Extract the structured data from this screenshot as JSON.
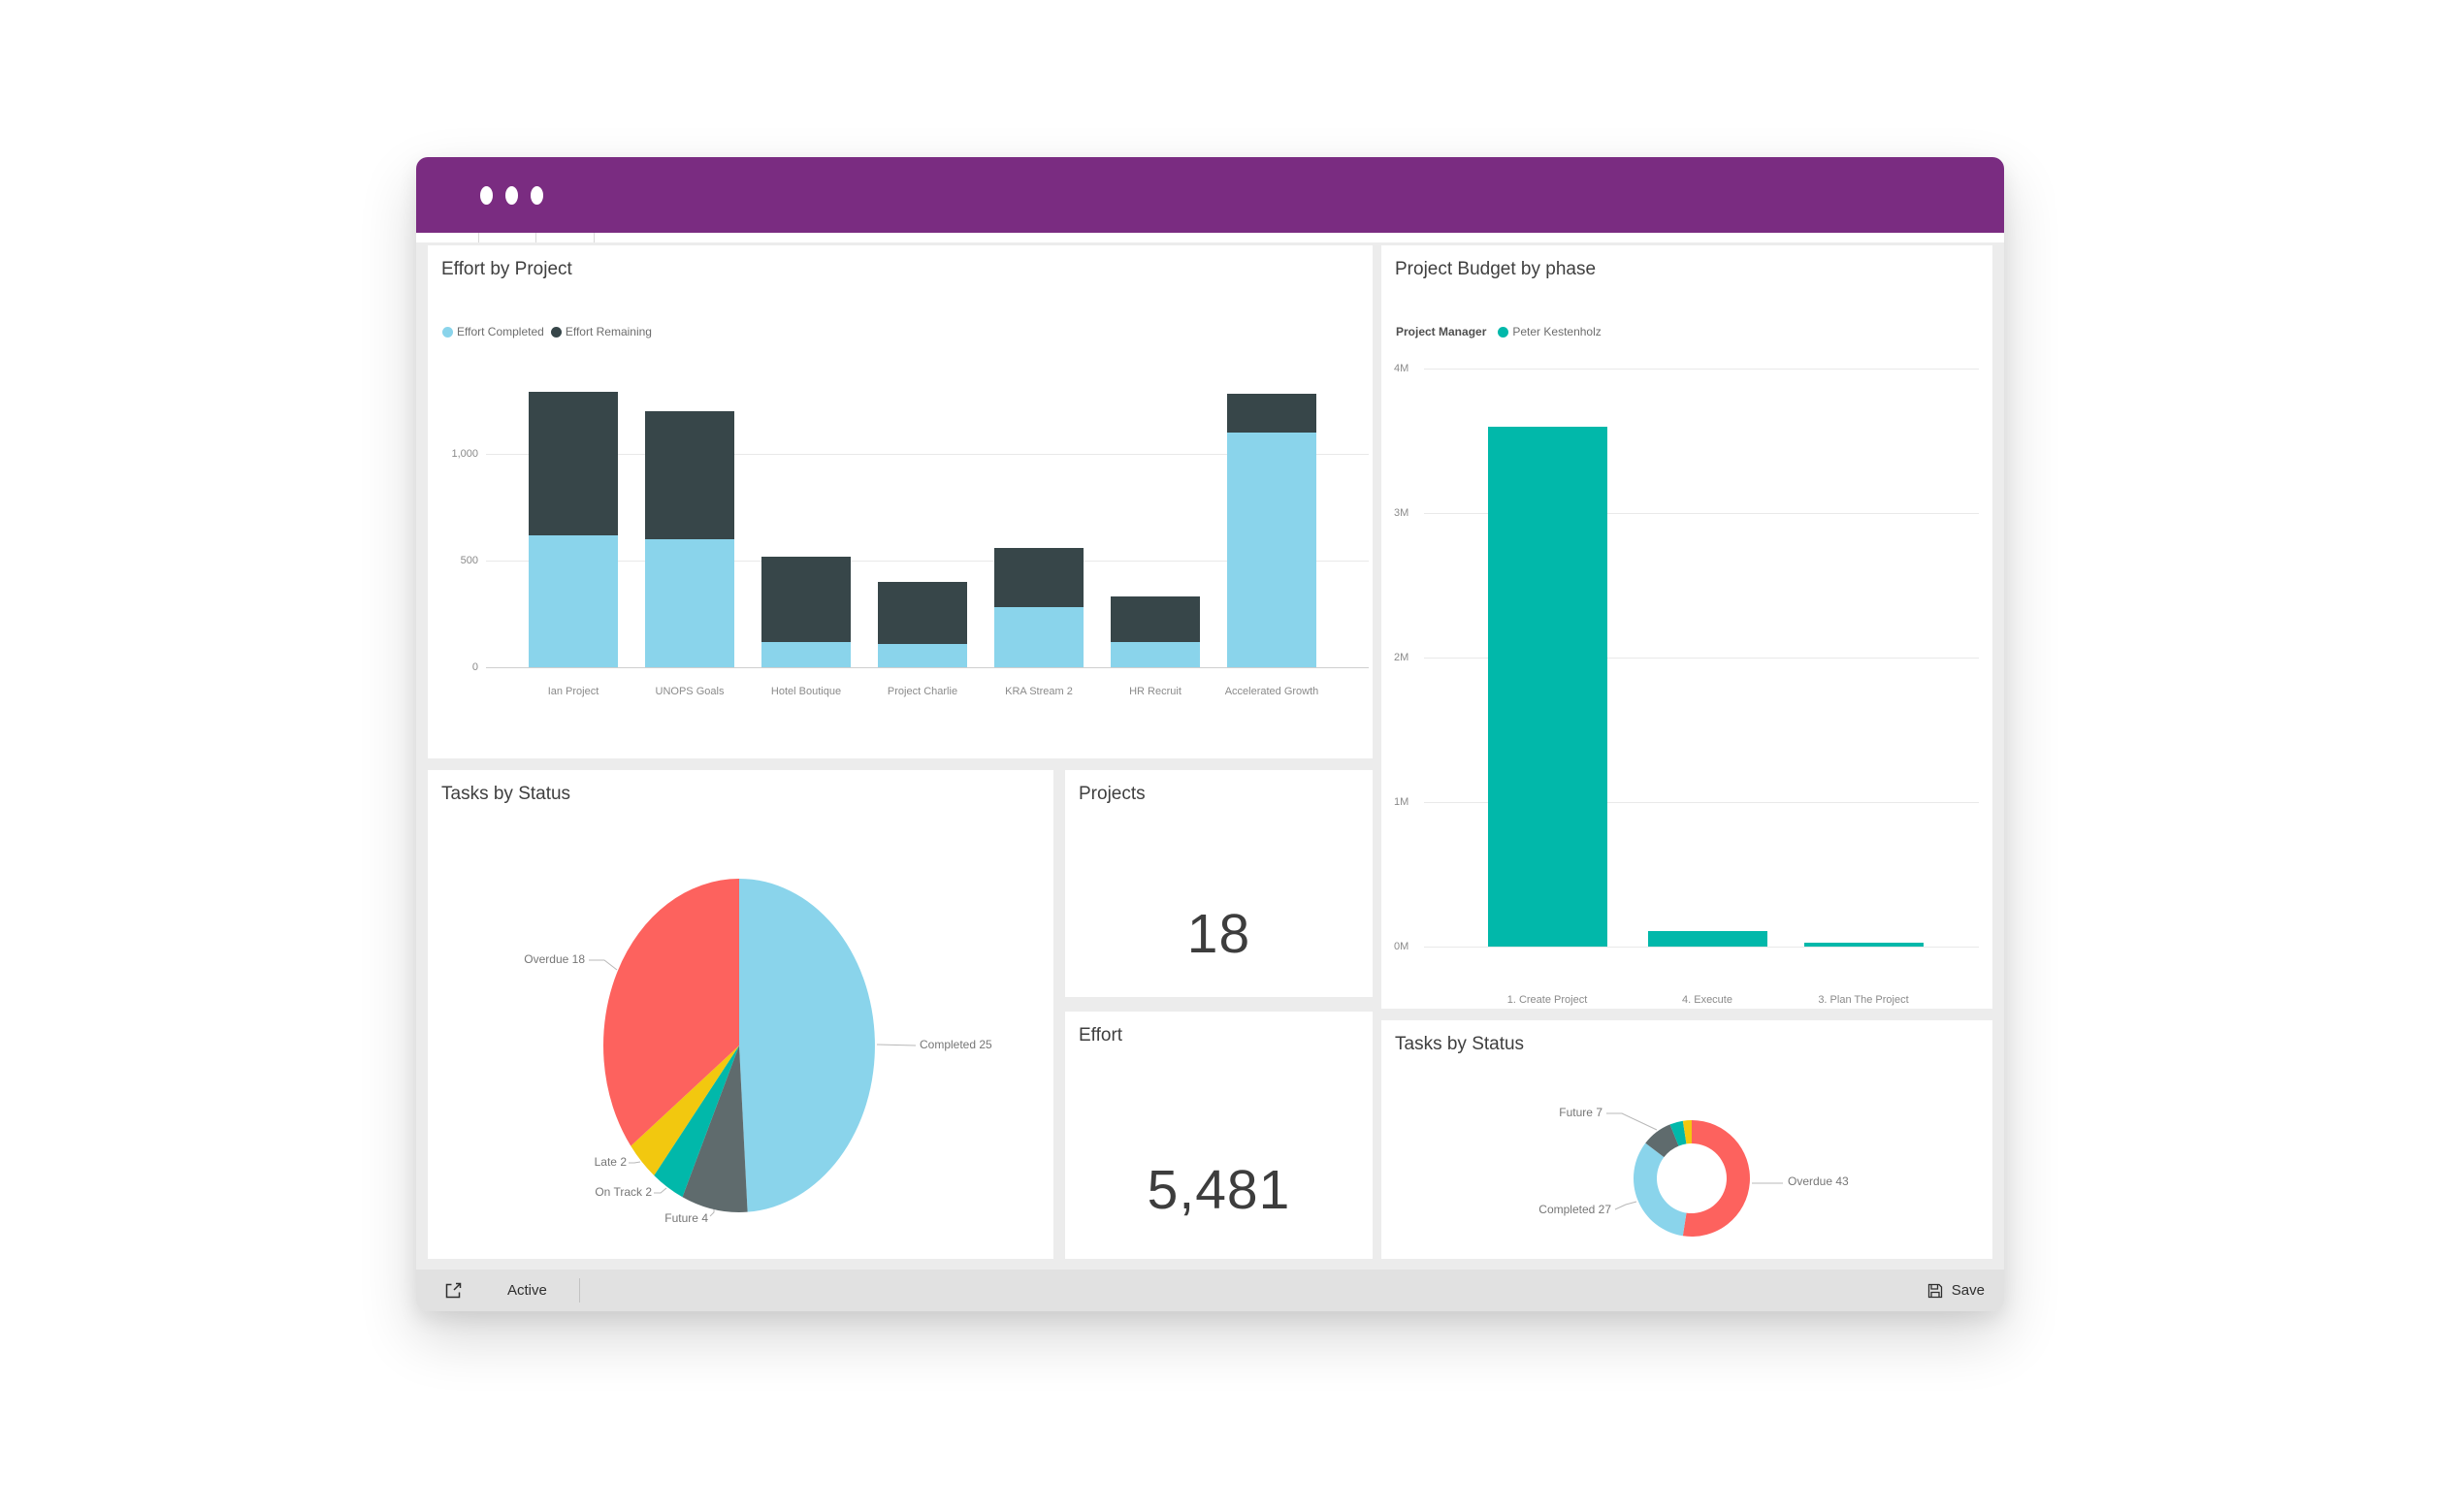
{
  "titlebar": {
    "color": "#7A2C81"
  },
  "footer": {
    "status": "Active",
    "save": "Save"
  },
  "colors": {
    "accent_purple": "#7A2C81",
    "teal": "#01B8AA",
    "dark_slate": "#374649",
    "red": "#FD625E",
    "yellow": "#F2C80F",
    "gray": "#5F6B6D",
    "light_blue": "#8AD4EB"
  },
  "cards": {
    "effort_by_project": {
      "title": "Effort by Project",
      "chart_index": 0
    },
    "project_budget": {
      "title": "Project Budget by phase",
      "chart_index": 1
    },
    "tasks_by_status_pie": {
      "title": "Tasks by Status",
      "chart_index": 2
    },
    "projects_kpi": {
      "title": "Projects",
      "value": "18"
    },
    "effort_kpi": {
      "title": "Effort",
      "value": "5,481"
    },
    "tasks_by_status_donut": {
      "title": "Tasks by Status",
      "chart_index": 3
    }
  },
  "chart_data": [
    {
      "type": "bar",
      "subtype": "stacked-column",
      "title": "Effort by Project",
      "categories": [
        "Ian Project",
        "UNOPS Goals",
        "Hotel Boutique",
        "Project Charlie",
        "KRA Stream 2",
        "HR Recruit",
        "Accelerated Growth"
      ],
      "series": [
        {
          "name": "Effort Completed",
          "color": "#8AD4EB",
          "values": [
            620,
            600,
            120,
            110,
            280,
            120,
            1100
          ]
        },
        {
          "name": "Effort Remaining",
          "color": "#374649",
          "values": [
            670,
            600,
            400,
            290,
            280,
            210,
            180
          ]
        }
      ],
      "y_ticks": [
        {
          "label": "1,000",
          "value": 1000
        },
        {
          "label": "500",
          "value": 500
        },
        {
          "label": "0",
          "value": 0
        }
      ],
      "ylim": [
        0,
        1390
      ],
      "grid": true,
      "legend_position": "top"
    },
    {
      "type": "bar",
      "subtype": "column",
      "title": "Project Budget by phase",
      "legend_title": "Project Manager",
      "legend": [
        {
          "label": "Peter Kestenholz",
          "color": "#01B8AA"
        }
      ],
      "categories": [
        "1. Create Project",
        "4. Execute",
        "3. Plan The Project"
      ],
      "values": [
        3.6,
        0.11,
        0.03
      ],
      "unit": "M",
      "color": "#01B8AA",
      "y_ticks": [
        {
          "label": "4M",
          "value": 4
        },
        {
          "label": "3M",
          "value": 3
        },
        {
          "label": "2M",
          "value": 2
        },
        {
          "label": "1M",
          "value": 1
        },
        {
          "label": "0M",
          "value": 0
        }
      ],
      "ylim": [
        0,
        4
      ],
      "grid": true
    },
    {
      "type": "pie",
      "title": "Tasks by Status",
      "slices": [
        {
          "label": "Completed",
          "value": 25,
          "display": "Completed 25",
          "color": "#8AD4EB"
        },
        {
          "label": "Future",
          "value": 4,
          "display": "Future 4",
          "color": "#5F6B6D"
        },
        {
          "label": "On Track",
          "value": 2,
          "display": "On Track 2",
          "color": "#01B8AA"
        },
        {
          "label": "Late",
          "value": 2,
          "display": "Late 2",
          "color": "#F2C80F"
        },
        {
          "label": "Overdue",
          "value": 18,
          "display": "Overdue 18",
          "color": "#FD625E"
        }
      ]
    },
    {
      "type": "pie",
      "subtype": "donut",
      "title": "Tasks by Status",
      "slices": [
        {
          "label": "Overdue",
          "value": 43,
          "display": "Overdue 43",
          "color": "#FD625E"
        },
        {
          "label": "Completed",
          "value": 27,
          "display": "Completed 27",
          "color": "#8AD4EB"
        },
        {
          "label": "Future",
          "value": 7,
          "display": "Future 7",
          "color": "#5F6B6D"
        },
        {
          "label": "",
          "value": 3,
          "display": "",
          "color": "#01B8AA"
        },
        {
          "label": "",
          "value": 2,
          "display": "",
          "color": "#F2C80F"
        }
      ]
    }
  ]
}
